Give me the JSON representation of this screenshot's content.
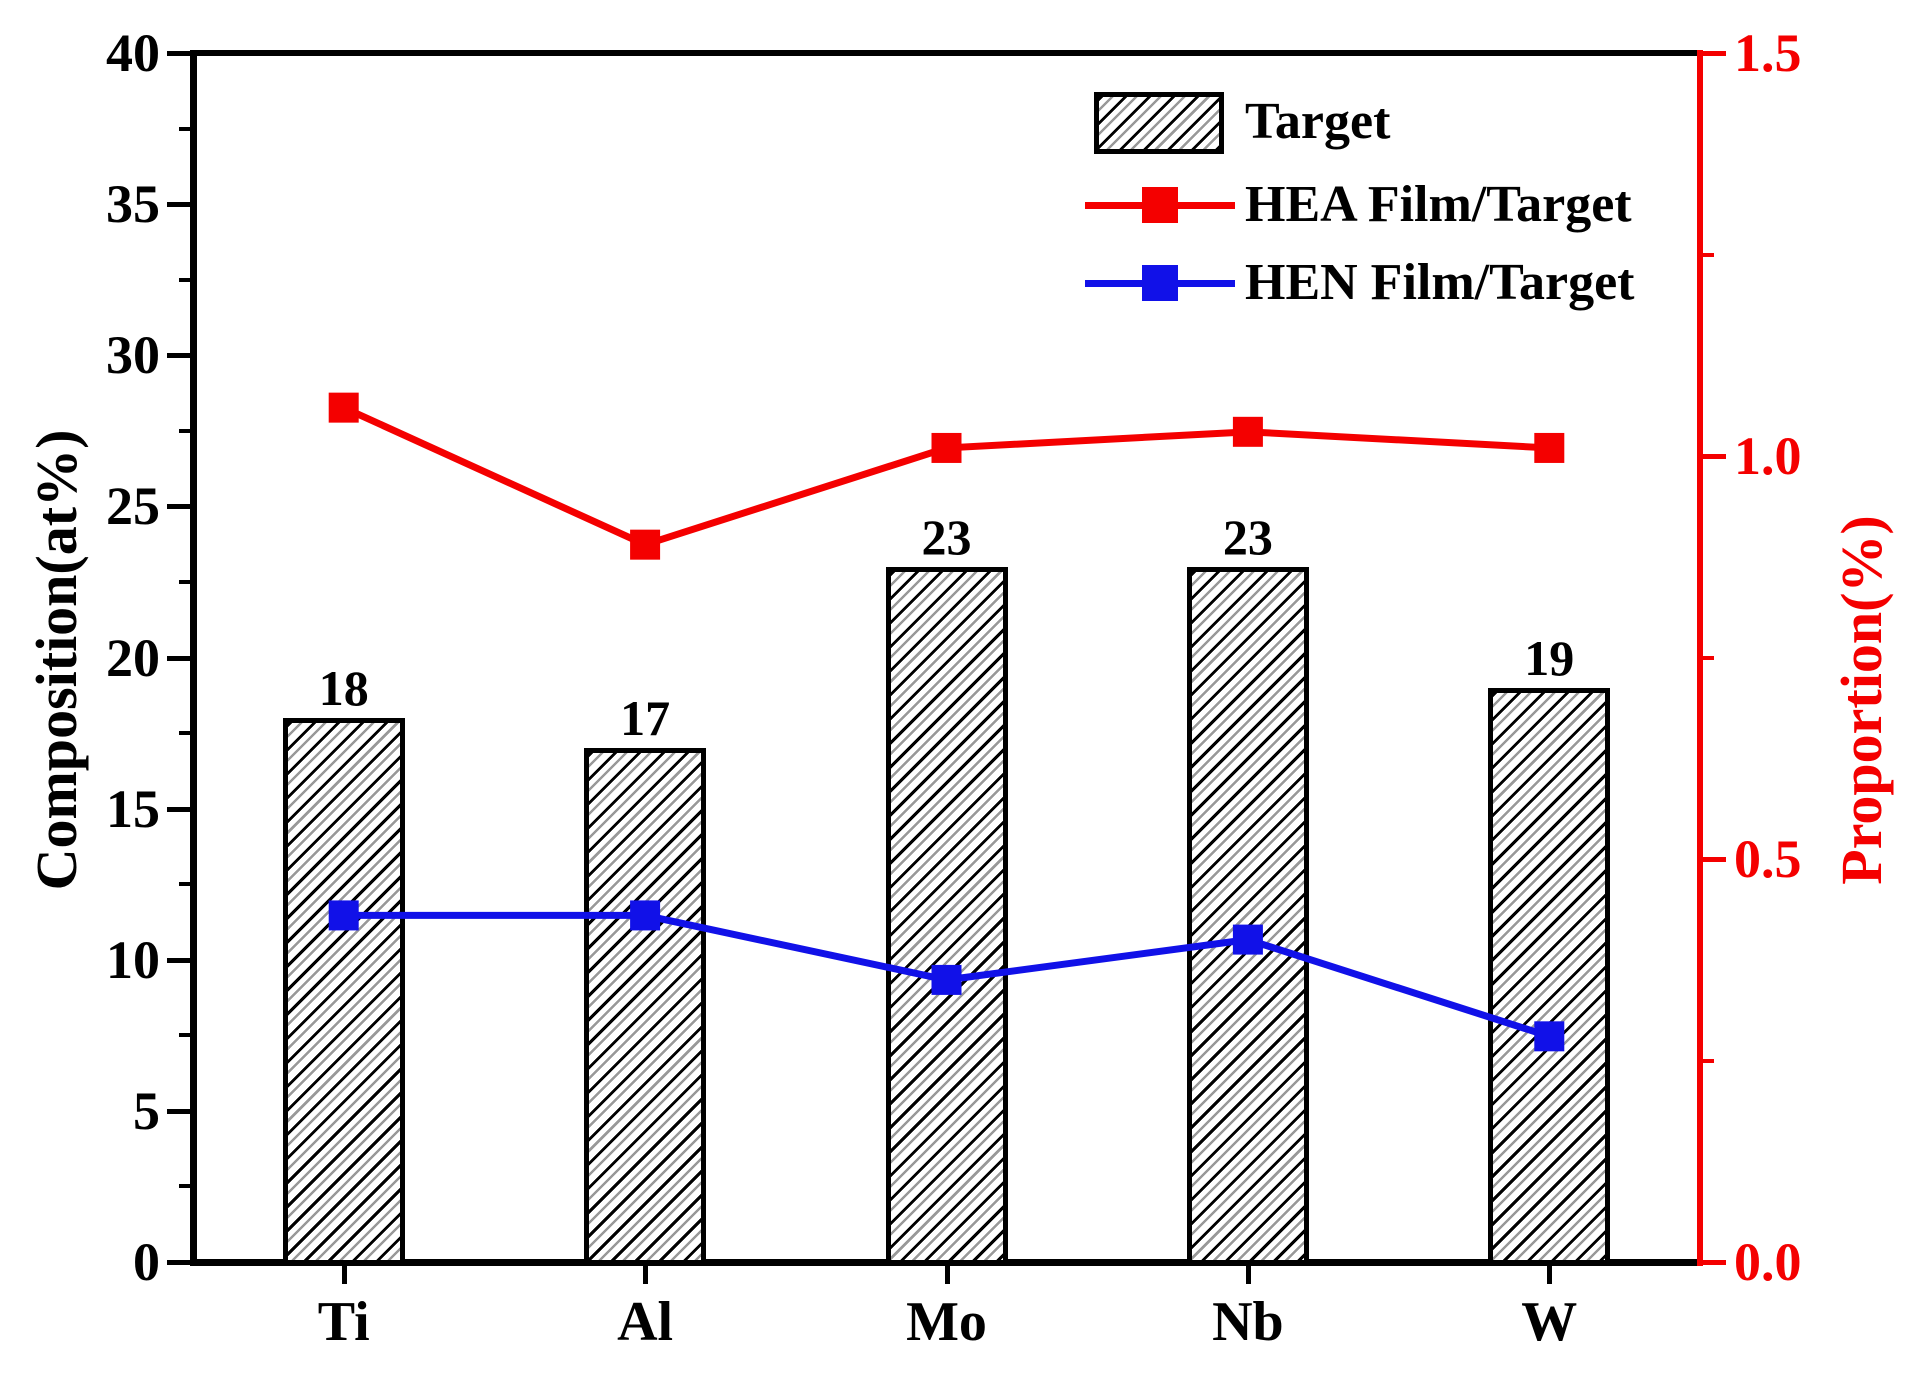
{
  "chart_data": {
    "type": "bar+line (dual y-axis)",
    "categories": [
      "Ti",
      "Al",
      "Mo",
      "Nb",
      "W"
    ],
    "series": [
      {
        "name": "Target",
        "type": "bar",
        "axis": "left",
        "values": [
          18,
          17,
          23,
          23,
          19
        ],
        "bar_labels": [
          "18",
          "17",
          "23",
          "23",
          "19"
        ],
        "fill": "black diagonal hatch on white",
        "border_color": "#000000"
      },
      {
        "name": "HEA Film/Target",
        "type": "line",
        "axis": "right",
        "marker": "square",
        "color": "#f40000",
        "values": [
          1.06,
          0.89,
          1.01,
          1.03,
          1.01
        ]
      },
      {
        "name": "HEN Film/Target",
        "type": "line",
        "axis": "right",
        "marker": "square",
        "color": "#1111e8",
        "values": [
          0.43,
          0.43,
          0.35,
          0.4,
          0.28
        ]
      }
    ],
    "left_axis": {
      "label": "Composition(at%)",
      "min": 0,
      "max": 40,
      "tick_labels": [
        "0",
        "5",
        "10",
        "15",
        "20",
        "25",
        "30",
        "35",
        "40"
      ],
      "minor_step": 2.5,
      "color": "#000000"
    },
    "right_axis": {
      "label": "Proportion(%)",
      "min": 0.0,
      "max": 1.5,
      "tick_labels": [
        "0.0",
        "0.5",
        "1.0",
        "1.5"
      ],
      "minor_step": 0.25,
      "color": "#f40000"
    },
    "x_axis": {
      "tick_labels": [
        "Ti",
        "Al",
        "Mo",
        "Nb",
        "W"
      ]
    },
    "legend": {
      "position": "top-right inside plot",
      "entries": [
        "Target",
        "HEA Film/Target",
        "HEN Film/Target"
      ]
    },
    "grid": "off",
    "background": "#ffffff"
  }
}
